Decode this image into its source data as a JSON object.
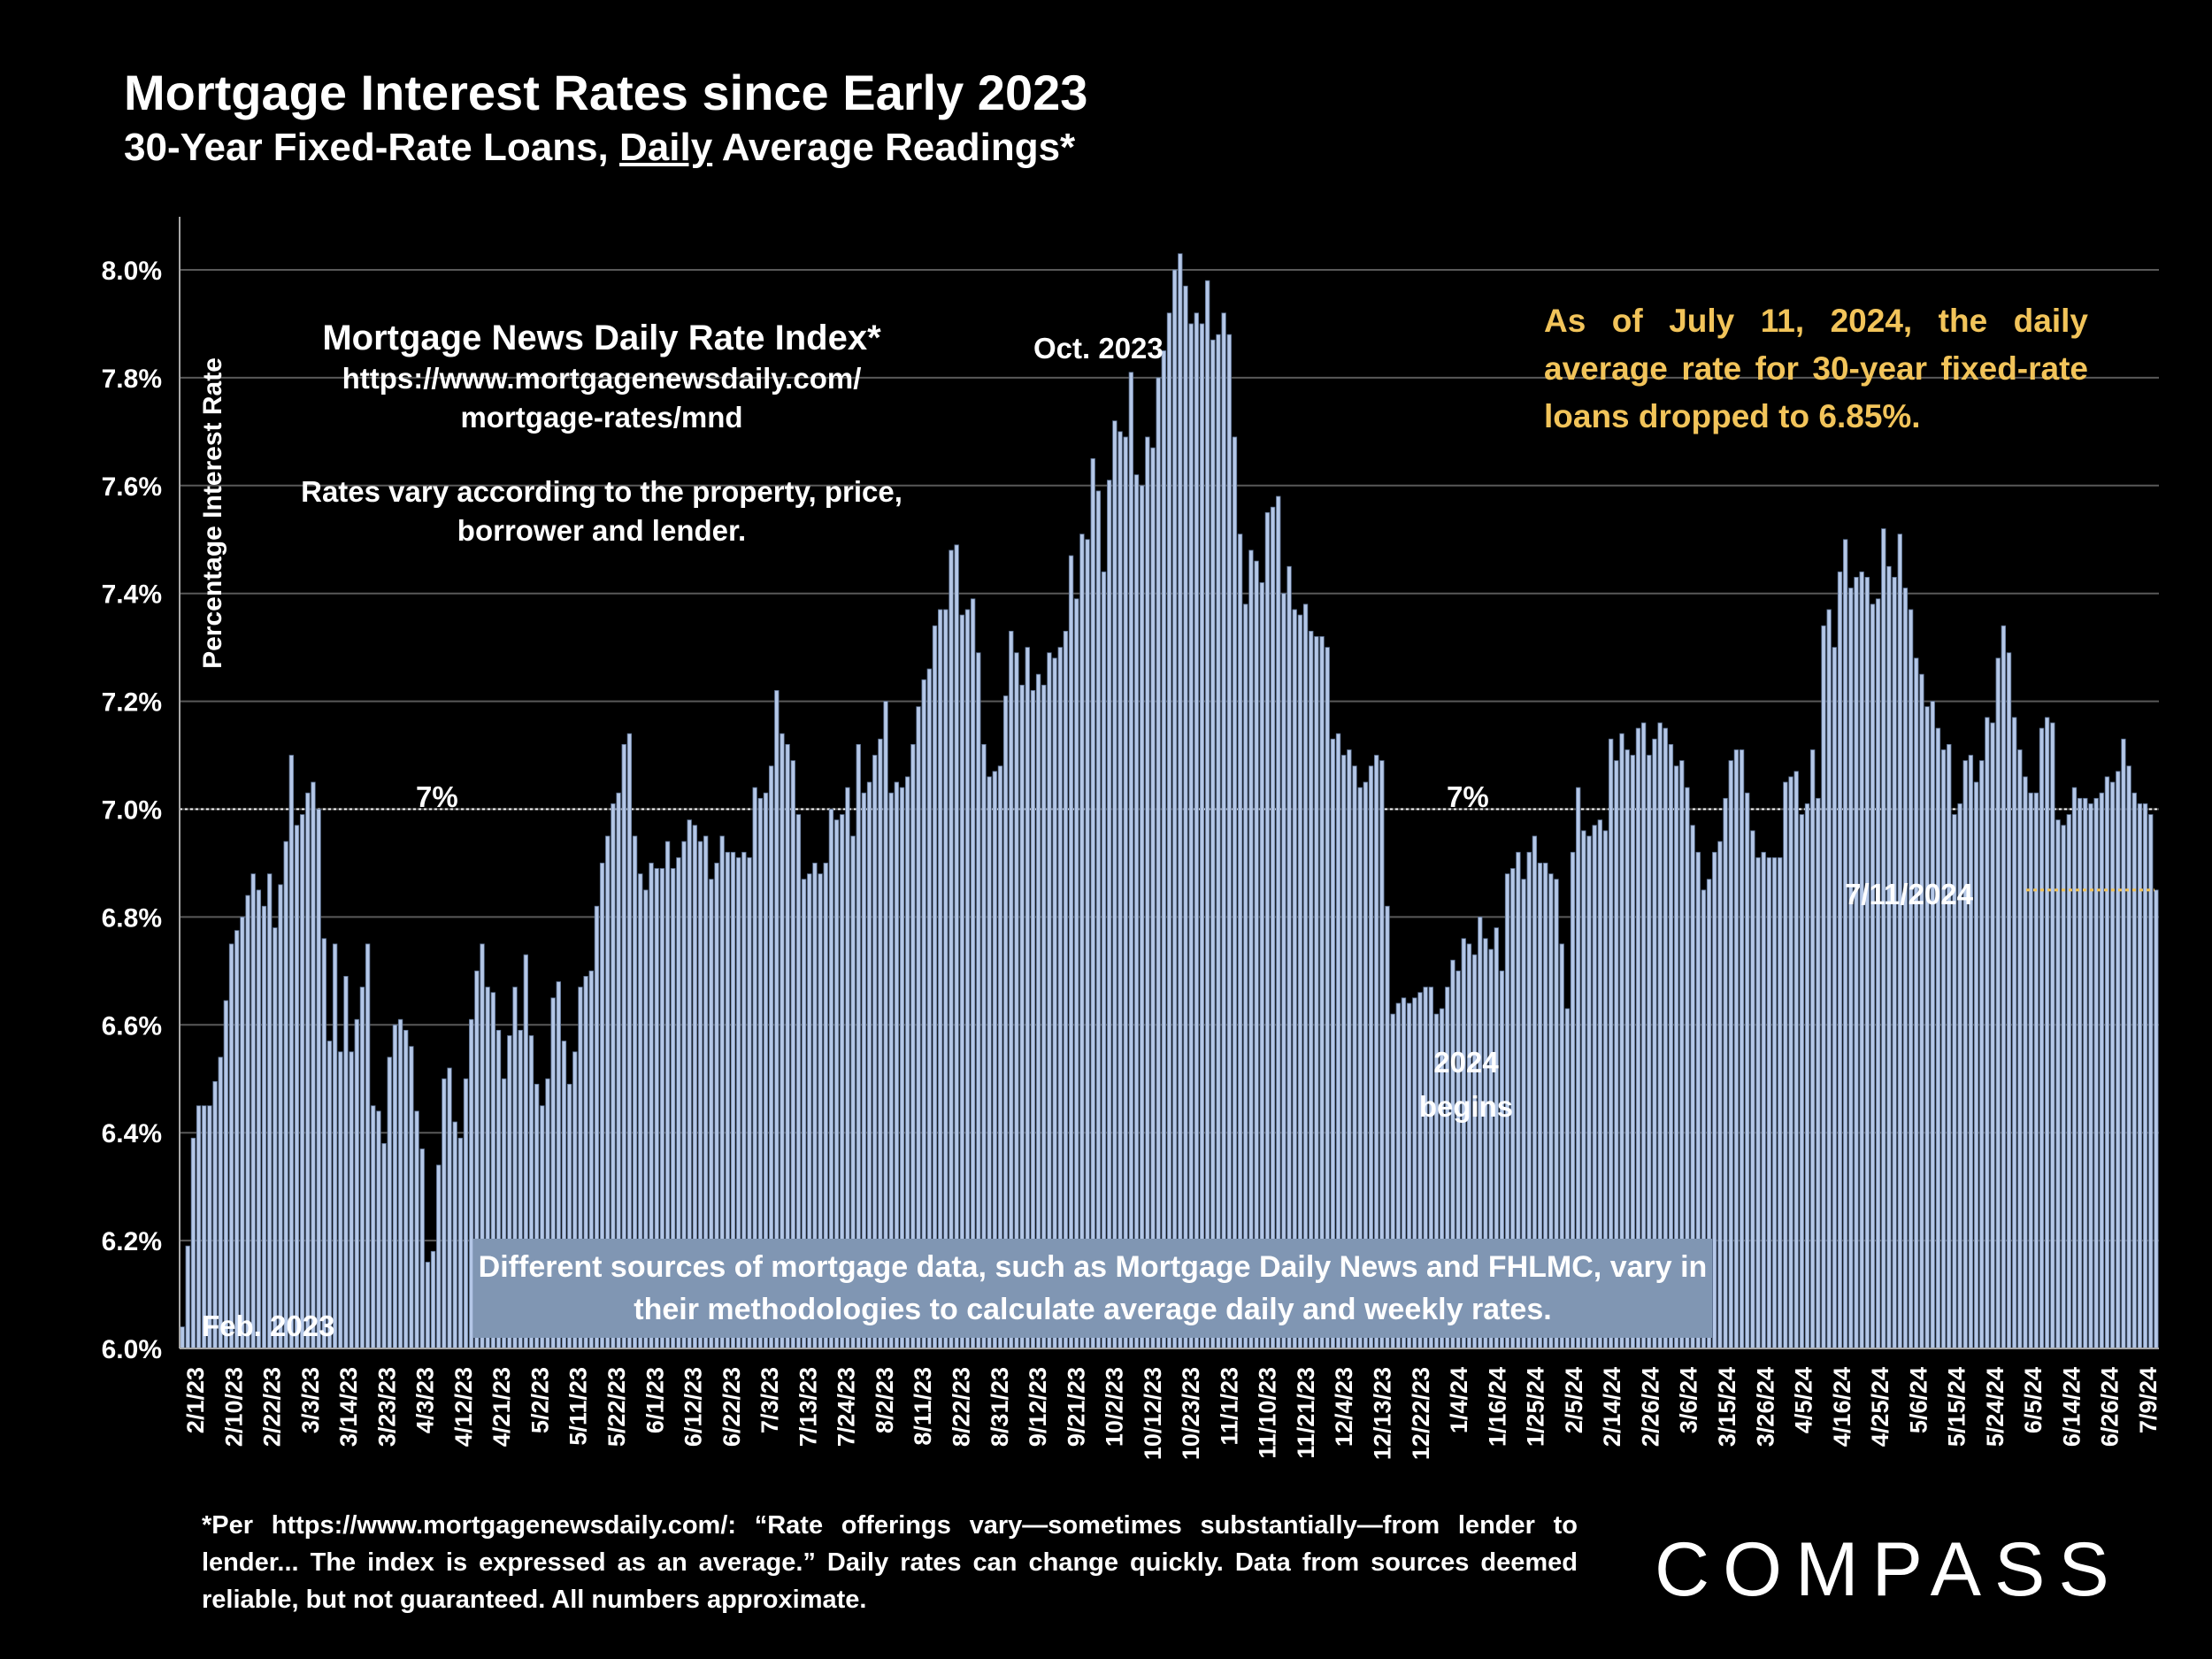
{
  "title": "Mortgage Interest Rates since Early 2023",
  "subtitle_parts": {
    "pre": "30-Year Fixed-Rate Loans, ",
    "emph": "Daily",
    "post": " Average Readings*"
  },
  "source_box": {
    "title": "Mortgage News Daily Rate Index*",
    "url": "https://www.mortgagenewsdaily.com/\nmortgage-rates/mnd",
    "note": "Rates vary according to the property, price, borrower and lender."
  },
  "as_of_note": "As of July 11, 2024, the daily average rate for 30-year fixed-rate loans dropped to 6.85%.",
  "methodology_note": "Different sources of mortgage data, such as Mortgage Daily News and FHLMC, vary in their methodologies to calculate average daily and weekly rates.",
  "footnote": "*Per https://www.mortgagenewsdaily.com/: “Rate offerings vary—sometimes substantially—from lender to lender... The index is expressed as an average.” Daily rates can change quickly. Data from sources deemed reliable, but not guaranteed. All numbers approximate.",
  "brand": "COMPASS",
  "colors": {
    "bar_fill": "#b4c7e7",
    "bar_edge": "#5a6f90",
    "callout": "#f2c45a",
    "box": "#8096b3",
    "reference_line": "#ffffff"
  },
  "chart_data": {
    "type": "bar",
    "title": "Mortgage Interest Rates since Early 2023",
    "ylabel": "Percentage Interest  Rate",
    "xlabel": "",
    "ylim": [
      6.0,
      8.0
    ],
    "y_ticks": [
      "6.0%",
      "6.2%",
      "6.4%",
      "6.6%",
      "6.8%",
      "7.0%",
      "7.2%",
      "7.4%",
      "7.6%",
      "7.8%",
      "8.0%"
    ],
    "x_tick_labels": [
      "2/1/23",
      "2/10/23",
      "2/22/23",
      "3/3/23",
      "3/14/23",
      "3/23/23",
      "4/3/23",
      "4/12/23",
      "4/21/23",
      "5/2/23",
      "5/11/23",
      "5/22/23",
      "6/1/23",
      "6/12/23",
      "6/22/23",
      "7/3/23",
      "7/13/23",
      "7/24/23",
      "8/2/23",
      "8/11/23",
      "8/22/23",
      "8/31/23",
      "9/12/23",
      "9/21/23",
      "10/2/23",
      "10/12/23",
      "10/23/23",
      "11/1/23",
      "11/10/23",
      "11/21/23",
      "12/4/23",
      "12/13/23",
      "12/22/23",
      "1/4/24",
      "1/16/24",
      "1/25/24",
      "2/5/24",
      "2/14/24",
      "2/26/24",
      "3/6/24",
      "3/15/24",
      "3/26/24",
      "4/5/24",
      "4/16/24",
      "4/25/24",
      "5/6/24",
      "5/15/24",
      "5/24/24",
      "6/5/24",
      "6/14/24",
      "6/26/24",
      "7/9/24"
    ],
    "reference_line": {
      "value": 7.0,
      "label": "7%"
    },
    "annotations": {
      "start": "Feb. 2023",
      "peak": "Oct. 2023",
      "year_line1": "2024",
      "year_line2": "begins",
      "last": "7/11/2024"
    },
    "last_value": 6.85,
    "anchors": [
      [
        0,
        6.04
      ],
      [
        1,
        6.19
      ],
      [
        2,
        6.39
      ],
      [
        3,
        6.45
      ],
      [
        5,
        6.45
      ],
      [
        7,
        6.54
      ],
      [
        9,
        6.75
      ],
      [
        11,
        6.8
      ],
      [
        13,
        6.88
      ],
      [
        15,
        6.82
      ],
      [
        16,
        6.88
      ],
      [
        17,
        6.78
      ],
      [
        19,
        6.94
      ],
      [
        20,
        7.1
      ],
      [
        21,
        6.97
      ],
      [
        22,
        6.99
      ],
      [
        23,
        7.03
      ],
      [
        24,
        7.05
      ],
      [
        25,
        7.0
      ],
      [
        26,
        6.76
      ],
      [
        27,
        6.57
      ],
      [
        28,
        6.75
      ],
      [
        29,
        6.55
      ],
      [
        30,
        6.69
      ],
      [
        31,
        6.55
      ],
      [
        33,
        6.67
      ],
      [
        34,
        6.75
      ],
      [
        35,
        6.45
      ],
      [
        36,
        6.44
      ],
      [
        37,
        6.38
      ],
      [
        38,
        6.54
      ],
      [
        39,
        6.6
      ],
      [
        40,
        6.61
      ],
      [
        41,
        6.59
      ],
      [
        42,
        6.56
      ],
      [
        43,
        6.44
      ],
      [
        44,
        6.37
      ],
      [
        45,
        6.16
      ],
      [
        46,
        6.18
      ],
      [
        47,
        6.34
      ],
      [
        48,
        6.5
      ],
      [
        49,
        6.52
      ],
      [
        50,
        6.42
      ],
      [
        51,
        6.39
      ],
      [
        52,
        6.5
      ],
      [
        53,
        6.61
      ],
      [
        54,
        6.7
      ],
      [
        55,
        6.75
      ],
      [
        56,
        6.67
      ],
      [
        57,
        6.66
      ],
      [
        58,
        6.59
      ],
      [
        59,
        6.5
      ],
      [
        60,
        6.58
      ],
      [
        61,
        6.67
      ],
      [
        62,
        6.59
      ],
      [
        63,
        6.73
      ],
      [
        64,
        6.58
      ],
      [
        65,
        6.49
      ],
      [
        66,
        6.45
      ],
      [
        67,
        6.5
      ],
      [
        68,
        6.65
      ],
      [
        69,
        6.68
      ],
      [
        70,
        6.57
      ],
      [
        71,
        6.49
      ],
      [
        72,
        6.55
      ],
      [
        73,
        6.67
      ],
      [
        74,
        6.69
      ],
      [
        75,
        6.7
      ],
      [
        76,
        6.82
      ],
      [
        77,
        6.9
      ],
      [
        78,
        6.95
      ],
      [
        79,
        7.01
      ],
      [
        80,
        7.03
      ],
      [
        81,
        7.12
      ],
      [
        82,
        7.14
      ],
      [
        83,
        6.95
      ],
      [
        84,
        6.88
      ],
      [
        85,
        6.85
      ],
      [
        86,
        6.9
      ],
      [
        87,
        6.89
      ],
      [
        88,
        6.89
      ],
      [
        89,
        6.94
      ],
      [
        90,
        6.89
      ],
      [
        91,
        6.91
      ],
      [
        92,
        6.94
      ],
      [
        93,
        6.98
      ],
      [
        94,
        6.97
      ],
      [
        95,
        6.94
      ],
      [
        96,
        6.95
      ],
      [
        97,
        6.87
      ],
      [
        98,
        6.9
      ],
      [
        99,
        6.95
      ],
      [
        100,
        6.92
      ],
      [
        101,
        6.92
      ],
      [
        102,
        6.91
      ],
      [
        103,
        6.92
      ],
      [
        104,
        6.91
      ],
      [
        105,
        7.04
      ],
      [
        106,
        7.02
      ],
      [
        107,
        7.03
      ],
      [
        108,
        7.08
      ],
      [
        109,
        7.22
      ],
      [
        110,
        7.14
      ],
      [
        111,
        7.12
      ],
      [
        112,
        7.09
      ],
      [
        113,
        6.99
      ],
      [
        114,
        6.87
      ],
      [
        115,
        6.88
      ],
      [
        116,
        6.9
      ],
      [
        117,
        6.88
      ],
      [
        118,
        6.9
      ],
      [
        119,
        7.0
      ],
      [
        120,
        6.98
      ],
      [
        121,
        6.99
      ],
      [
        122,
        7.04
      ],
      [
        123,
        6.95
      ],
      [
        124,
        7.12
      ],
      [
        125,
        7.03
      ],
      [
        126,
        7.05
      ],
      [
        127,
        7.1
      ],
      [
        128,
        7.13
      ],
      [
        129,
        7.2
      ],
      [
        130,
        7.03
      ],
      [
        131,
        7.05
      ],
      [
        132,
        7.04
      ],
      [
        133,
        7.06
      ],
      [
        134,
        7.12
      ],
      [
        135,
        7.19
      ],
      [
        136,
        7.24
      ],
      [
        137,
        7.26
      ],
      [
        138,
        7.34
      ],
      [
        139,
        7.37
      ],
      [
        140,
        7.37
      ],
      [
        141,
        7.48
      ],
      [
        142,
        7.49
      ],
      [
        143,
        7.36
      ],
      [
        144,
        7.37
      ],
      [
        145,
        7.39
      ],
      [
        146,
        7.29
      ],
      [
        147,
        7.12
      ],
      [
        148,
        7.06
      ],
      [
        149,
        7.07
      ],
      [
        150,
        7.08
      ],
      [
        151,
        7.21
      ],
      [
        152,
        7.33
      ],
      [
        153,
        7.29
      ],
      [
        154,
        7.23
      ],
      [
        155,
        7.3
      ],
      [
        156,
        7.22
      ],
      [
        157,
        7.25
      ],
      [
        158,
        7.23
      ],
      [
        159,
        7.29
      ],
      [
        160,
        7.28
      ],
      [
        161,
        7.3
      ],
      [
        162,
        7.33
      ],
      [
        163,
        7.47
      ],
      [
        164,
        7.39
      ],
      [
        165,
        7.51
      ],
      [
        166,
        7.5
      ],
      [
        167,
        7.65
      ],
      [
        168,
        7.59
      ],
      [
        169,
        7.44
      ],
      [
        170,
        7.61
      ],
      [
        171,
        7.72
      ],
      [
        172,
        7.7
      ],
      [
        173,
        7.69
      ],
      [
        174,
        7.81
      ],
      [
        175,
        7.62
      ],
      [
        176,
        7.6
      ],
      [
        177,
        7.69
      ],
      [
        178,
        7.67
      ],
      [
        179,
        7.8
      ],
      [
        180,
        7.85
      ],
      [
        181,
        7.92
      ],
      [
        182,
        8.0
      ],
      [
        183,
        8.03
      ],
      [
        184,
        7.97
      ],
      [
        185,
        7.9
      ],
      [
        186,
        7.92
      ],
      [
        187,
        7.9
      ],
      [
        188,
        7.98
      ],
      [
        189,
        7.87
      ],
      [
        190,
        7.88
      ],
      [
        191,
        7.92
      ],
      [
        192,
        7.88
      ],
      [
        193,
        7.69
      ],
      [
        194,
        7.51
      ],
      [
        195,
        7.38
      ],
      [
        196,
        7.48
      ],
      [
        197,
        7.46
      ],
      [
        198,
        7.42
      ],
      [
        199,
        7.55
      ],
      [
        200,
        7.56
      ],
      [
        201,
        7.58
      ],
      [
        202,
        7.4
      ],
      [
        203,
        7.45
      ],
      [
        204,
        7.37
      ],
      [
        205,
        7.36
      ],
      [
        206,
        7.38
      ],
      [
        207,
        7.33
      ],
      [
        208,
        7.32
      ],
      [
        209,
        7.32
      ],
      [
        210,
        7.3
      ],
      [
        211,
        7.13
      ],
      [
        212,
        7.14
      ],
      [
        213,
        7.1
      ],
      [
        214,
        7.11
      ],
      [
        215,
        7.08
      ],
      [
        216,
        7.04
      ],
      [
        217,
        7.05
      ],
      [
        218,
        7.08
      ],
      [
        219,
        7.1
      ],
      [
        220,
        7.09
      ],
      [
        221,
        6.82
      ],
      [
        222,
        6.62
      ],
      [
        223,
        6.64
      ],
      [
        224,
        6.65
      ],
      [
        225,
        6.64
      ],
      [
        226,
        6.65
      ],
      [
        227,
        6.66
      ],
      [
        228,
        6.67
      ],
      [
        229,
        6.67
      ],
      [
        230,
        6.62
      ],
      [
        231,
        6.63
      ],
      [
        232,
        6.67
      ],
      [
        233,
        6.72
      ],
      [
        234,
        6.7
      ],
      [
        235,
        6.76
      ],
      [
        236,
        6.75
      ],
      [
        237,
        6.73
      ],
      [
        238,
        6.8
      ],
      [
        239,
        6.76
      ],
      [
        240,
        6.74
      ],
      [
        241,
        6.78
      ],
      [
        242,
        6.7
      ],
      [
        243,
        6.88
      ],
      [
        244,
        6.89
      ],
      [
        245,
        6.92
      ],
      [
        246,
        6.87
      ],
      [
        247,
        6.92
      ],
      [
        248,
        6.95
      ],
      [
        249,
        6.9
      ],
      [
        250,
        6.9
      ],
      [
        251,
        6.88
      ],
      [
        252,
        6.87
      ],
      [
        253,
        6.75
      ],
      [
        254,
        6.63
      ],
      [
        255,
        6.92
      ],
      [
        256,
        7.04
      ],
      [
        257,
        6.96
      ],
      [
        258,
        6.95
      ],
      [
        259,
        6.97
      ],
      [
        260,
        6.98
      ],
      [
        261,
        6.96
      ],
      [
        262,
        7.13
      ],
      [
        263,
        7.09
      ],
      [
        264,
        7.14
      ],
      [
        265,
        7.11
      ],
      [
        266,
        7.1
      ],
      [
        267,
        7.15
      ],
      [
        268,
        7.16
      ],
      [
        269,
        7.1
      ],
      [
        270,
        7.13
      ],
      [
        271,
        7.16
      ],
      [
        272,
        7.15
      ],
      [
        273,
        7.12
      ],
      [
        274,
        7.08
      ],
      [
        275,
        7.09
      ],
      [
        276,
        7.04
      ],
      [
        277,
        6.97
      ],
      [
        278,
        6.92
      ],
      [
        279,
        6.85
      ],
      [
        280,
        6.87
      ],
      [
        281,
        6.92
      ],
      [
        282,
        6.94
      ],
      [
        283,
        7.02
      ],
      [
        284,
        7.09
      ],
      [
        285,
        7.11
      ],
      [
        286,
        7.11
      ],
      [
        287,
        7.03
      ],
      [
        288,
        6.96
      ],
      [
        289,
        6.91
      ],
      [
        290,
        6.92
      ],
      [
        291,
        6.91
      ],
      [
        292,
        6.91
      ],
      [
        293,
        6.91
      ],
      [
        294,
        7.05
      ],
      [
        295,
        7.06
      ],
      [
        296,
        7.07
      ],
      [
        297,
        6.99
      ],
      [
        298,
        7.01
      ],
      [
        299,
        7.11
      ],
      [
        300,
        7.02
      ],
      [
        301,
        7.34
      ],
      [
        302,
        7.37
      ],
      [
        303,
        7.3
      ],
      [
        304,
        7.44
      ],
      [
        305,
        7.5
      ],
      [
        306,
        7.41
      ],
      [
        307,
        7.43
      ],
      [
        308,
        7.44
      ],
      [
        309,
        7.43
      ],
      [
        310,
        7.38
      ],
      [
        311,
        7.39
      ],
      [
        312,
        7.52
      ],
      [
        313,
        7.45
      ],
      [
        314,
        7.43
      ],
      [
        315,
        7.51
      ],
      [
        316,
        7.41
      ],
      [
        317,
        7.37
      ],
      [
        318,
        7.28
      ],
      [
        319,
        7.25
      ],
      [
        320,
        7.19
      ],
      [
        321,
        7.2
      ],
      [
        322,
        7.15
      ],
      [
        323,
        7.11
      ],
      [
        324,
        7.12
      ],
      [
        325,
        6.99
      ],
      [
        326,
        7.01
      ],
      [
        327,
        7.09
      ],
      [
        328,
        7.1
      ],
      [
        329,
        7.05
      ],
      [
        330,
        7.09
      ],
      [
        331,
        7.17
      ],
      [
        332,
        7.16
      ],
      [
        333,
        7.28
      ],
      [
        334,
        7.34
      ],
      [
        335,
        7.29
      ],
      [
        336,
        7.17
      ],
      [
        337,
        7.11
      ],
      [
        338,
        7.06
      ],
      [
        339,
        7.03
      ],
      [
        340,
        7.03
      ],
      [
        341,
        7.15
      ],
      [
        342,
        7.17
      ],
      [
        343,
        7.16
      ],
      [
        344,
        6.98
      ],
      [
        345,
        6.97
      ],
      [
        346,
        6.99
      ],
      [
        347,
        7.04
      ],
      [
        348,
        7.02
      ],
      [
        349,
        7.02
      ],
      [
        350,
        7.01
      ],
      [
        351,
        7.02
      ],
      [
        352,
        7.03
      ],
      [
        353,
        7.06
      ],
      [
        354,
        7.05
      ],
      [
        355,
        7.07
      ],
      [
        356,
        7.13
      ],
      [
        357,
        7.08
      ],
      [
        358,
        7.03
      ],
      [
        359,
        7.01
      ],
      [
        360,
        7.01
      ],
      [
        361,
        6.99
      ],
      [
        362,
        6.85
      ]
    ]
  }
}
